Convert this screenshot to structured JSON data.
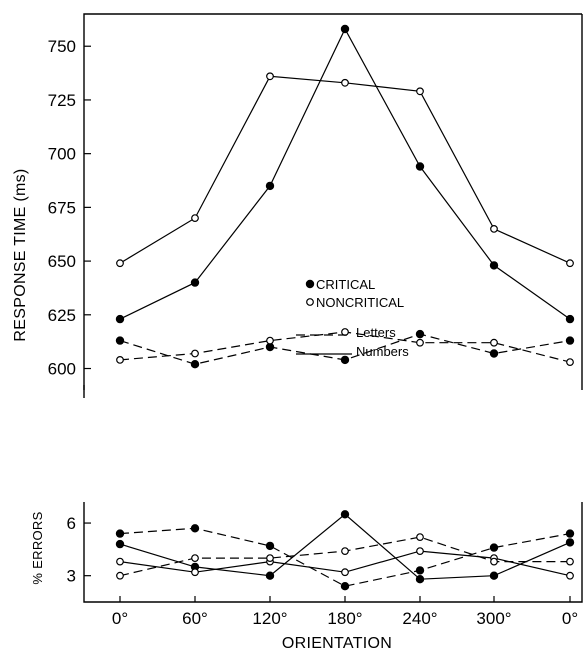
{
  "chart_data": {
    "type": "line",
    "x_categories": [
      "0°",
      "60°",
      "120°",
      "180°",
      "240°",
      "300°",
      "0°"
    ],
    "xlabel": "ORIENTATION",
    "legend": {
      "placement": "center-right of upper panel",
      "markers": [
        {
          "label": "CRITICAL",
          "marker": "filled-circle"
        },
        {
          "label": "NONCRITICAL",
          "marker": "open-circle"
        }
      ],
      "lines": [
        {
          "label": "Letters",
          "style": "dashed"
        },
        {
          "label": "Numbers",
          "style": "solid"
        }
      ]
    },
    "panels": [
      {
        "id": "rt",
        "ylabel": "RESPONSE TIME (ms)",
        "ylim": [
          590,
          765
        ],
        "yticks": [
          600,
          625,
          650,
          675,
          700,
          725,
          750
        ],
        "series": [
          {
            "material": "Numbers",
            "condition": "CRITICAL",
            "line": "solid",
            "marker": "filled",
            "values": [
              623,
              640,
              685,
              758,
              694,
              648,
              623
            ]
          },
          {
            "material": "Numbers",
            "condition": "NONCRITICAL",
            "line": "solid",
            "marker": "open",
            "values": [
              649,
              670,
              736,
              733,
              729,
              665,
              649
            ]
          },
          {
            "material": "Letters",
            "condition": "CRITICAL",
            "line": "dashed",
            "marker": "filled",
            "values": [
              613,
              602,
              610,
              604,
              616,
              607,
              613
            ]
          },
          {
            "material": "Letters",
            "condition": "NONCRITICAL",
            "line": "dashed",
            "marker": "open",
            "values": [
              604,
              607,
              613,
              617,
              612,
              612,
              603
            ]
          }
        ]
      },
      {
        "id": "errors",
        "ylabel": "% ERRORS",
        "ylim": [
          1.5,
          7.2
        ],
        "yticks": [
          3,
          6
        ],
        "series": [
          {
            "material": "Numbers",
            "condition": "CRITICAL",
            "line": "solid",
            "marker": "filled",
            "values": [
              4.8,
              3.5,
              3.0,
              6.5,
              2.8,
              3.0,
              4.9
            ]
          },
          {
            "material": "Numbers",
            "condition": "NONCRITICAL",
            "line": "solid",
            "marker": "open",
            "values": [
              3.8,
              3.2,
              3.8,
              3.2,
              4.4,
              4.0,
              3.0
            ]
          },
          {
            "material": "Letters",
            "condition": "CRITICAL",
            "line": "dashed",
            "marker": "filled",
            "values": [
              5.4,
              5.7,
              4.7,
              2.4,
              3.3,
              4.6,
              5.4
            ]
          },
          {
            "material": "Letters",
            "condition": "NONCRITICAL",
            "line": "dashed",
            "marker": "open",
            "values": [
              3.0,
              4.0,
              4.0,
              4.4,
              5.2,
              3.8,
              3.8
            ]
          }
        ]
      }
    ]
  }
}
